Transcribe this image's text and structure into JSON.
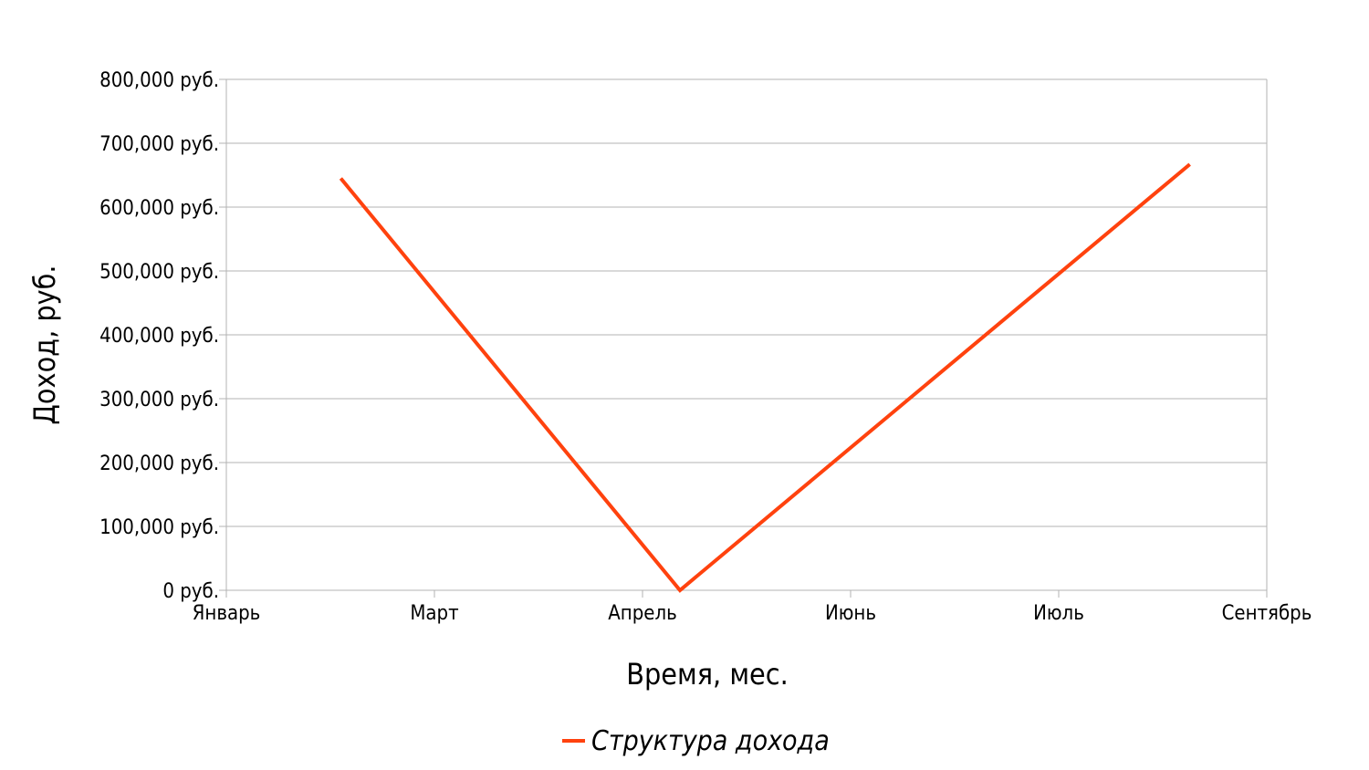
{
  "chart_data": {
    "type": "line",
    "title": "",
    "xlabel": "Время, мес.",
    "ylabel": "Доход, руб.",
    "x_ticks": [
      "Январь",
      "Март",
      "Апрель",
      "Июнь",
      "Июль",
      "Сентябрь"
    ],
    "y_ticks": [
      "0 руб.",
      "100,000 руб.",
      "200,000 руб.",
      "300,000 руб.",
      "400,000 руб.",
      "500,000 руб.",
      "600,000 руб.",
      "700,000 руб.",
      "800,000 руб."
    ],
    "ylim": [
      0,
      800000
    ],
    "grid": true,
    "legend_position": "bottom",
    "series": [
      {
        "name": "Структура дохода",
        "color": "#ff420e",
        "points": [
          {
            "x_index": 0.55,
            "y": 645000
          },
          {
            "x_index": 2.18,
            "y": 0
          },
          {
            "x_index": 4.63,
            "y": 667000
          }
        ]
      }
    ]
  }
}
